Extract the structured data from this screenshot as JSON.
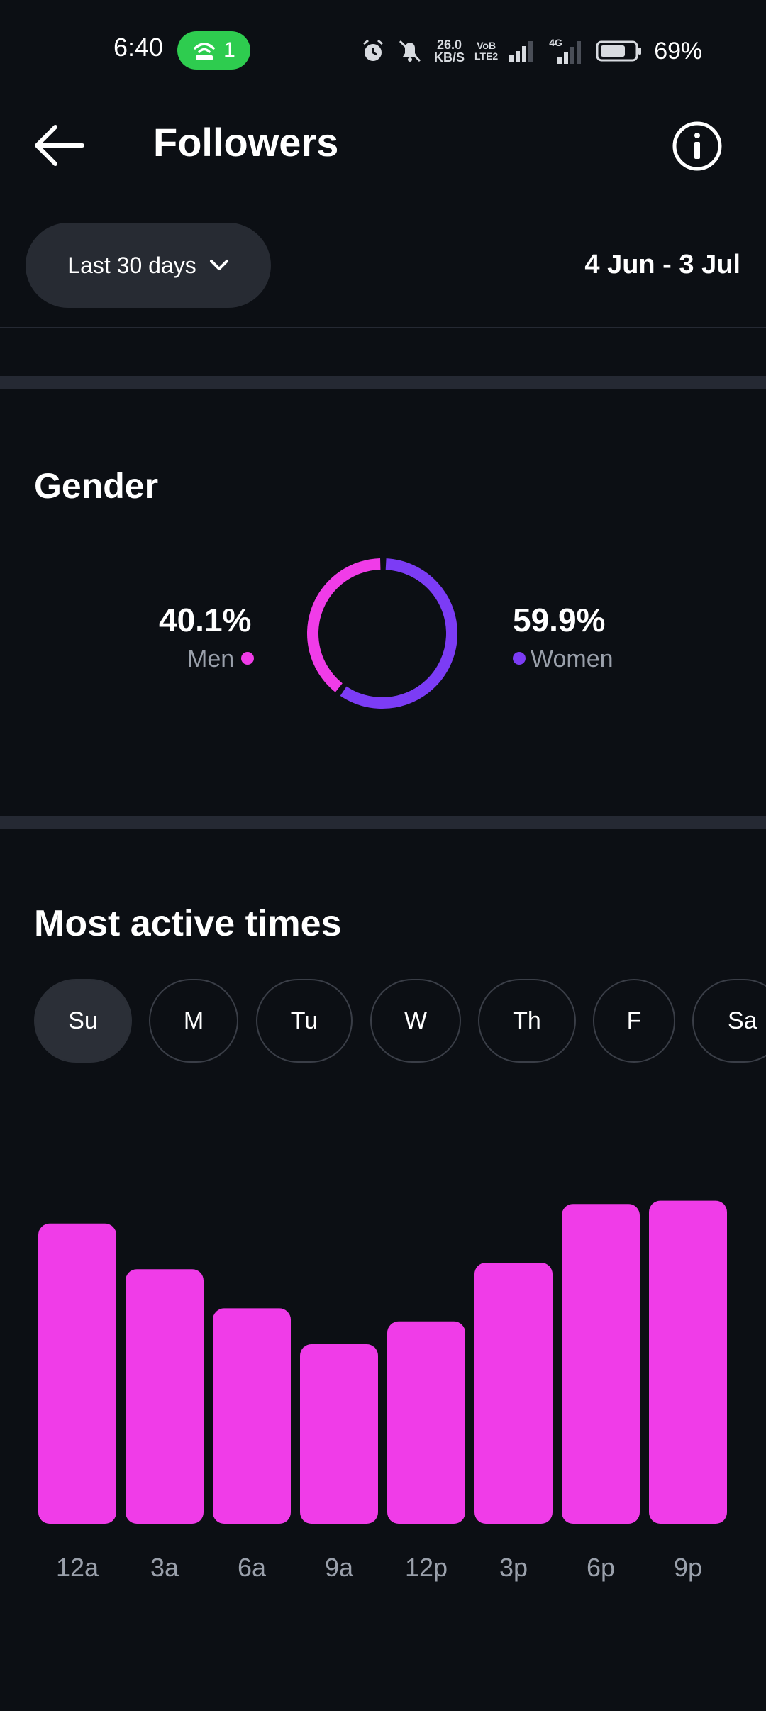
{
  "status_bar": {
    "time": "6:40",
    "hotspot_count": "1",
    "speed_value": "26.0",
    "speed_unit": "KB/S",
    "volte_top": "VoB",
    "volte_bottom": "LTE2",
    "network": "4G",
    "battery": "69%"
  },
  "header": {
    "title": "Followers"
  },
  "range": {
    "label": "Last 30 days",
    "dates": "4 Jun - 3 Jul"
  },
  "gender": {
    "title": "Gender",
    "men": {
      "pct": "40.1%",
      "label": "Men",
      "value": 40.1,
      "color": "#f03ce8"
    },
    "women": {
      "pct": "59.9%",
      "label": "Women",
      "value": 59.9,
      "color": "#7c3cf5"
    }
  },
  "active_times": {
    "title": "Most active times",
    "days": [
      "Su",
      "M",
      "Tu",
      "W",
      "Th",
      "F",
      "Sa"
    ],
    "selected_day": "Su"
  },
  "chart_data": {
    "type": "bar",
    "categories": [
      "12a",
      "3a",
      "6a",
      "9a",
      "12p",
      "3p",
      "6p",
      "9p"
    ],
    "values": [
      92,
      78,
      66,
      55,
      62,
      80,
      98,
      99
    ],
    "ylim": [
      0,
      100
    ],
    "color": "#f03ce8",
    "grid": false,
    "title": "",
    "xlabel": "",
    "ylabel": ""
  }
}
